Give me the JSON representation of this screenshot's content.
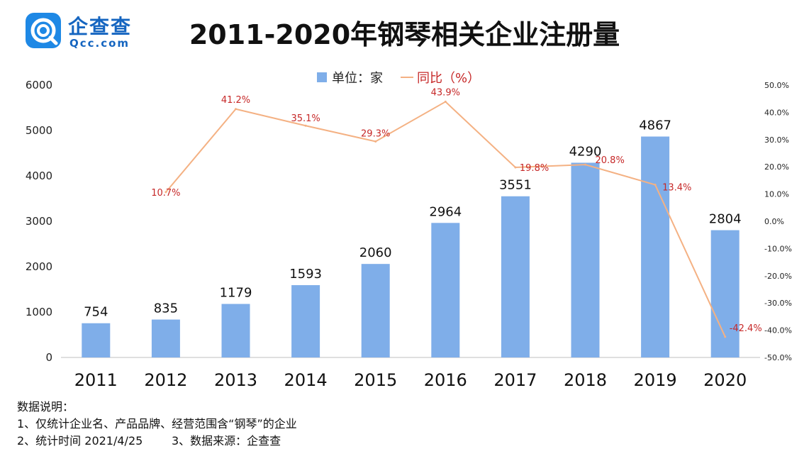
{
  "header": {
    "logo_cn": "企查查",
    "logo_en": "Qcc.com",
    "title": "2011-2020年钢琴相关企业注册量"
  },
  "chart_data": {
    "type": "bar",
    "title": "2011-2020年钢琴相关企业注册量",
    "categories": [
      "2011",
      "2012",
      "2013",
      "2014",
      "2015",
      "2016",
      "2017",
      "2018",
      "2019",
      "2020"
    ],
    "series": [
      {
        "name": "单位：家",
        "type": "bar",
        "axis": "left",
        "color": "#7faee9",
        "values": [
          754,
          835,
          1179,
          1593,
          2060,
          2964,
          3551,
          4290,
          4867,
          2804
        ],
        "labels": [
          "754",
          "835",
          "1179",
          "1593",
          "2060",
          "2964",
          "3551",
          "4290",
          "4867",
          "2804"
        ]
      },
      {
        "name": "同比（%）",
        "type": "line",
        "axis": "right",
        "color": "#f4b183",
        "values": [
          null,
          10.7,
          41.2,
          35.1,
          29.3,
          43.9,
          19.8,
          20.8,
          13.4,
          -42.4
        ],
        "labels": [
          "",
          "10.7%",
          "41.2%",
          "35.1%",
          "29.3%",
          "43.9%",
          "19.8%",
          "20.8%",
          "13.4%",
          "-42.4%"
        ]
      }
    ],
    "y_left": {
      "min": 0,
      "max": 6000,
      "ticks": [
        "0",
        "1000",
        "2000",
        "3000",
        "4000",
        "5000",
        "6000"
      ]
    },
    "y_right": {
      "min": -50,
      "max": 50,
      "ticks": [
        "-50.0%",
        "-40.0%",
        "-30.0%",
        "-20.0%",
        "-10.0%",
        "0.0%",
        "10.0%",
        "20.0%",
        "30.0%",
        "40.0%",
        "50.0%"
      ]
    },
    "legend_position": "top-center",
    "grid": false
  },
  "notes": {
    "heading": "数据说明：",
    "line1": "1、仅统计企业名、产品品牌、经营范围含“钢琴”的企业",
    "line2": "2、统计时间 2021/4/25        3、数据来源：企查查"
  }
}
